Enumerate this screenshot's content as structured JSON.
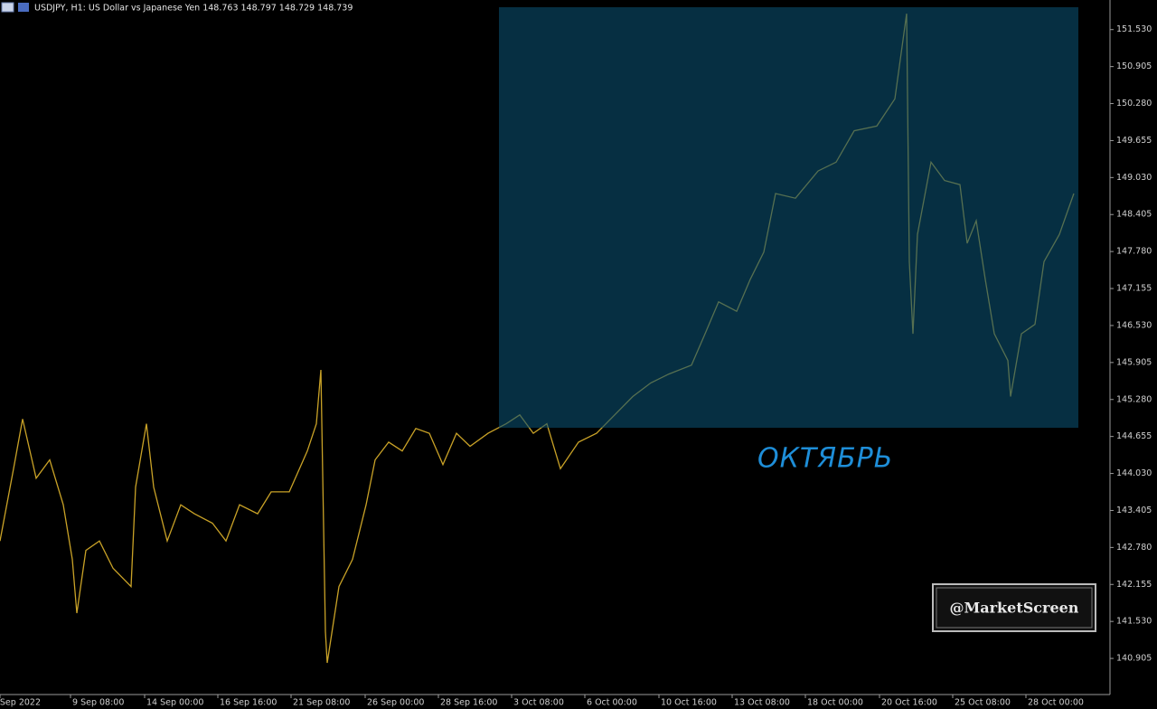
{
  "chart_data": {
    "type": "line",
    "title": "USDJPY, H1:  US Dollar vs Japanese Yen  148.763 148.797 148.729 148.739",
    "annotation": "ОКТЯБРЬ",
    "watermark": "@MarketScreen",
    "color": "#c9a227",
    "x": [
      0,
      15,
      25,
      40,
      55,
      70,
      80,
      85,
      95,
      110,
      125,
      145,
      150,
      162,
      170,
      185,
      200,
      215,
      235,
      250,
      265,
      285,
      300,
      320,
      340,
      350,
      355,
      360,
      362,
      375,
      390,
      405,
      415,
      430,
      445,
      460,
      475,
      490,
      505,
      520,
      540,
      560,
      575,
      590,
      605,
      620,
      640,
      660,
      680,
      700,
      720,
      740,
      765,
      780,
      795,
      815,
      830,
      845,
      858,
      880,
      905,
      925,
      945,
      970,
      990,
      1003,
      1006,
      1010,
      1015,
      1030,
      1045,
      1062,
      1070,
      1080,
      1090,
      1100,
      1115,
      1118,
      1130,
      1145,
      1155,
      1172,
      1188
    ],
    "values": [
      142.89,
      144.11,
      144.95,
      143.95,
      144.26,
      143.5,
      142.58,
      141.67,
      142.73,
      142.89,
      142.43,
      142.12,
      143.8,
      144.87,
      143.8,
      142.89,
      143.5,
      143.35,
      143.19,
      142.89,
      143.5,
      143.35,
      143.72,
      143.72,
      144.41,
      144.87,
      145.78,
      141.36,
      140.83,
      142.12,
      142.58,
      143.5,
      144.26,
      144.56,
      144.41,
      144.79,
      144.71,
      144.18,
      144.71,
      144.49,
      144.71,
      144.87,
      145.02,
      144.71,
      144.87,
      144.11,
      144.56,
      144.71,
      145.02,
      145.33,
      145.56,
      145.71,
      145.86,
      146.39,
      146.93,
      146.77,
      147.31,
      147.77,
      148.76,
      148.68,
      149.14,
      149.29,
      149.82,
      149.9,
      150.36,
      151.8,
      147.61,
      146.39,
      148.07,
      149.29,
      148.98,
      148.91,
      147.92,
      148.3,
      147.31,
      146.39,
      145.94,
      145.33,
      146.39,
      146.55,
      147.61,
      148.07,
      148.76
    ],
    "xlim": [
      0,
      1228
    ],
    "ylim": [
      140.295,
      152.03
    ],
    "xticks": [
      {
        "value": 0,
        "label": "5 Sep 2022"
      },
      {
        "value": 78,
        "label": "9 Sep 08:00"
      },
      {
        "value": 160,
        "label": "14 Sep 00:00"
      },
      {
        "value": 241,
        "label": "16 Sep 16:00"
      },
      {
        "value": 322,
        "label": "21 Sep 08:00"
      },
      {
        "value": 404,
        "label": "26 Sep 00:00"
      },
      {
        "value": 485,
        "label": "28 Sep 16:00"
      },
      {
        "value": 566,
        "label": "3 Oct 08:00"
      },
      {
        "value": 647,
        "label": "6 Oct 00:00"
      },
      {
        "value": 729,
        "label": "10 Oct 16:00"
      },
      {
        "value": 810,
        "label": "13 Oct 08:00"
      },
      {
        "value": 891,
        "label": "18 Oct 00:00"
      },
      {
        "value": 973,
        "label": "20 Oct 16:00"
      },
      {
        "value": 1054,
        "label": "25 Oct 08:00"
      },
      {
        "value": 1135,
        "label": "28 Oct 00:00"
      }
    ],
    "yticks": [
      {
        "value": 140.905,
        "label": "140.905"
      },
      {
        "value": 141.53,
        "label": "141.530"
      },
      {
        "value": 142.155,
        "label": "142.155"
      },
      {
        "value": 142.78,
        "label": "142.780"
      },
      {
        "value": 143.405,
        "label": "143.405"
      },
      {
        "value": 144.03,
        "label": "144.030"
      },
      {
        "value": 144.655,
        "label": "144.655"
      },
      {
        "value": 145.28,
        "label": "145.280"
      },
      {
        "value": 145.905,
        "label": "145.905"
      },
      {
        "value": 146.53,
        "label": "146.530"
      },
      {
        "value": 147.155,
        "label": "147.155"
      },
      {
        "value": 147.78,
        "label": "147.780"
      },
      {
        "value": 148.405,
        "label": "148.405"
      },
      {
        "value": 149.03,
        "label": "149.030"
      },
      {
        "value": 149.655,
        "label": "149.655"
      },
      {
        "value": 150.28,
        "label": "150.280"
      },
      {
        "value": 150.905,
        "label": "150.905"
      },
      {
        "value": 151.53,
        "label": "151.530"
      }
    ]
  }
}
